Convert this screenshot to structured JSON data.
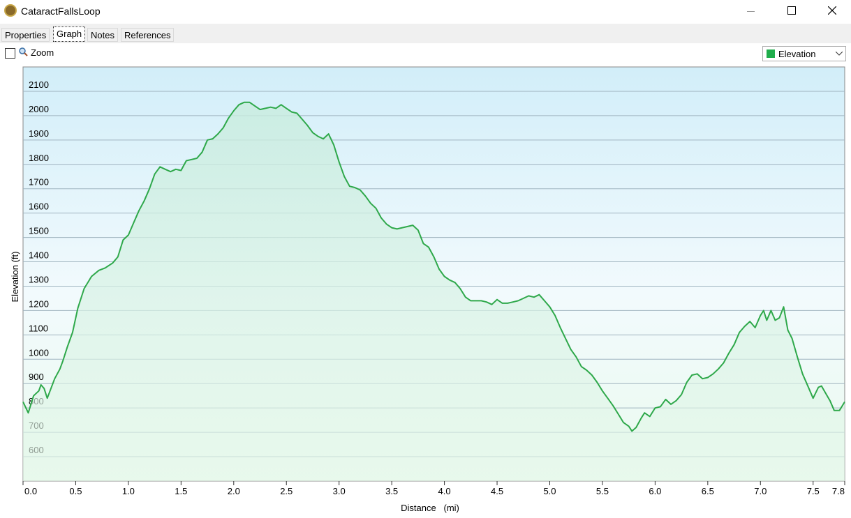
{
  "window": {
    "title": "CataractFallsLoop"
  },
  "tabs": [
    "Properties",
    "Graph",
    "Notes",
    "References"
  ],
  "toolbar": {
    "zoom": "Zoom",
    "dropdown": "Elevation"
  },
  "chart_data": {
    "type": "area",
    "xlabel": "Distance   (mi)",
    "ylabel": "Elevation (ft)",
    "color": "#2ea84a",
    "grid": true,
    "xlim": [
      0,
      7.8
    ],
    "ylim": [
      500,
      2200
    ],
    "xticks": [
      {
        "value": 0,
        "label": "0.0"
      },
      0.5,
      {
        "value": 1,
        "label": "1.0"
      },
      1.5,
      {
        "value": 2,
        "label": "2.0"
      },
      2.5,
      {
        "value": 3,
        "label": "3.0"
      },
      3.5,
      {
        "value": 4,
        "label": "4.0"
      },
      4.5,
      {
        "value": 5,
        "label": "5.0"
      },
      5.5,
      {
        "value": 6,
        "label": "6.0"
      },
      6.5,
      {
        "value": 7,
        "label": "7.0"
      },
      7.5,
      7.8
    ],
    "yticks": [
      600,
      700,
      800,
      900,
      1000,
      1100,
      1200,
      1300,
      1400,
      1500,
      1600,
      1700,
      1800,
      1900,
      2000,
      2100
    ],
    "x": [
      0,
      0.05,
      0.1,
      0.15,
      0.17,
      0.2,
      0.23,
      0.3,
      0.35,
      0.38,
      0.42,
      0.47,
      0.52,
      0.58,
      0.65,
      0.72,
      0.78,
      0.85,
      0.9,
      0.95,
      1,
      1.05,
      1.1,
      1.15,
      1.2,
      1.25,
      1.3,
      1.35,
      1.4,
      1.45,
      1.5,
      1.55,
      1.6,
      1.65,
      1.7,
      1.75,
      1.8,
      1.85,
      1.9,
      1.95,
      2,
      2.05,
      2.1,
      2.15,
      2.2,
      2.25,
      2.3,
      2.35,
      2.4,
      2.45,
      2.5,
      2.55,
      2.6,
      2.65,
      2.7,
      2.75,
      2.8,
      2.85,
      2.9,
      2.95,
      3,
      3.05,
      3.1,
      3.15,
      3.2,
      3.25,
      3.3,
      3.35,
      3.4,
      3.45,
      3.5,
      3.55,
      3.6,
      3.65,
      3.7,
      3.75,
      3.8,
      3.85,
      3.9,
      3.95,
      4,
      4.05,
      4.1,
      4.15,
      4.2,
      4.25,
      4.3,
      4.35,
      4.4,
      4.45,
      4.5,
      4.55,
      4.6,
      4.65,
      4.7,
      4.75,
      4.8,
      4.85,
      4.9,
      4.95,
      5,
      5.05,
      5.1,
      5.15,
      5.2,
      5.25,
      5.3,
      5.35,
      5.4,
      5.45,
      5.5,
      5.55,
      5.6,
      5.65,
      5.7,
      5.75,
      5.78,
      5.82,
      5.87,
      5.9,
      5.95,
      6,
      6.05,
      6.1,
      6.15,
      6.2,
      6.25,
      6.3,
      6.35,
      6.4,
      6.45,
      6.5,
      6.55,
      6.6,
      6.65,
      6.7,
      6.75,
      6.8,
      6.85,
      6.9,
      6.95,
      7,
      7.03,
      7.06,
      7.1,
      7.14,
      7.18,
      7.22,
      7.26,
      7.3,
      7.35,
      7.4,
      7.45,
      7.5,
      7.55,
      7.58,
      7.62,
      7.66,
      7.7,
      7.75,
      7.8
    ],
    "values": [
      825,
      780,
      850,
      870,
      895,
      880,
      840,
      920,
      960,
      995,
      1050,
      1110,
      1210,
      1290,
      1340,
      1365,
      1375,
      1395,
      1420,
      1490,
      1510,
      1560,
      1610,
      1650,
      1700,
      1760,
      1790,
      1780,
      1770,
      1780,
      1775,
      1815,
      1820,
      1825,
      1850,
      1900,
      1905,
      1925,
      1950,
      1990,
      2020,
      2045,
      2055,
      2055,
      2040,
      2025,
      2030,
      2035,
      2030,
      2045,
      2030,
      2015,
      2010,
      1985,
      1960,
      1930,
      1915,
      1905,
      1925,
      1880,
      1810,
      1750,
      1710,
      1705,
      1695,
      1670,
      1640,
      1620,
      1580,
      1555,
      1540,
      1535,
      1540,
      1545,
      1550,
      1530,
      1475,
      1460,
      1420,
      1370,
      1340,
      1325,
      1315,
      1290,
      1255,
      1240,
      1240,
      1240,
      1235,
      1225,
      1245,
      1230,
      1230,
      1235,
      1240,
      1250,
      1260,
      1255,
      1265,
      1240,
      1215,
      1180,
      1130,
      1085,
      1040,
      1010,
      970,
      955,
      935,
      905,
      870,
      840,
      810,
      775,
      740,
      725,
      705,
      720,
      760,
      780,
      765,
      800,
      805,
      835,
      815,
      830,
      855,
      905,
      935,
      940,
      920,
      925,
      940,
      960,
      985,
      1025,
      1060,
      1110,
      1135,
      1155,
      1130,
      1180,
      1200,
      1160,
      1200,
      1160,
      1170,
      1215,
      1120,
      1085,
      1010,
      940,
      890,
      840,
      885,
      890,
      860,
      830,
      790,
      790,
      825
    ]
  }
}
